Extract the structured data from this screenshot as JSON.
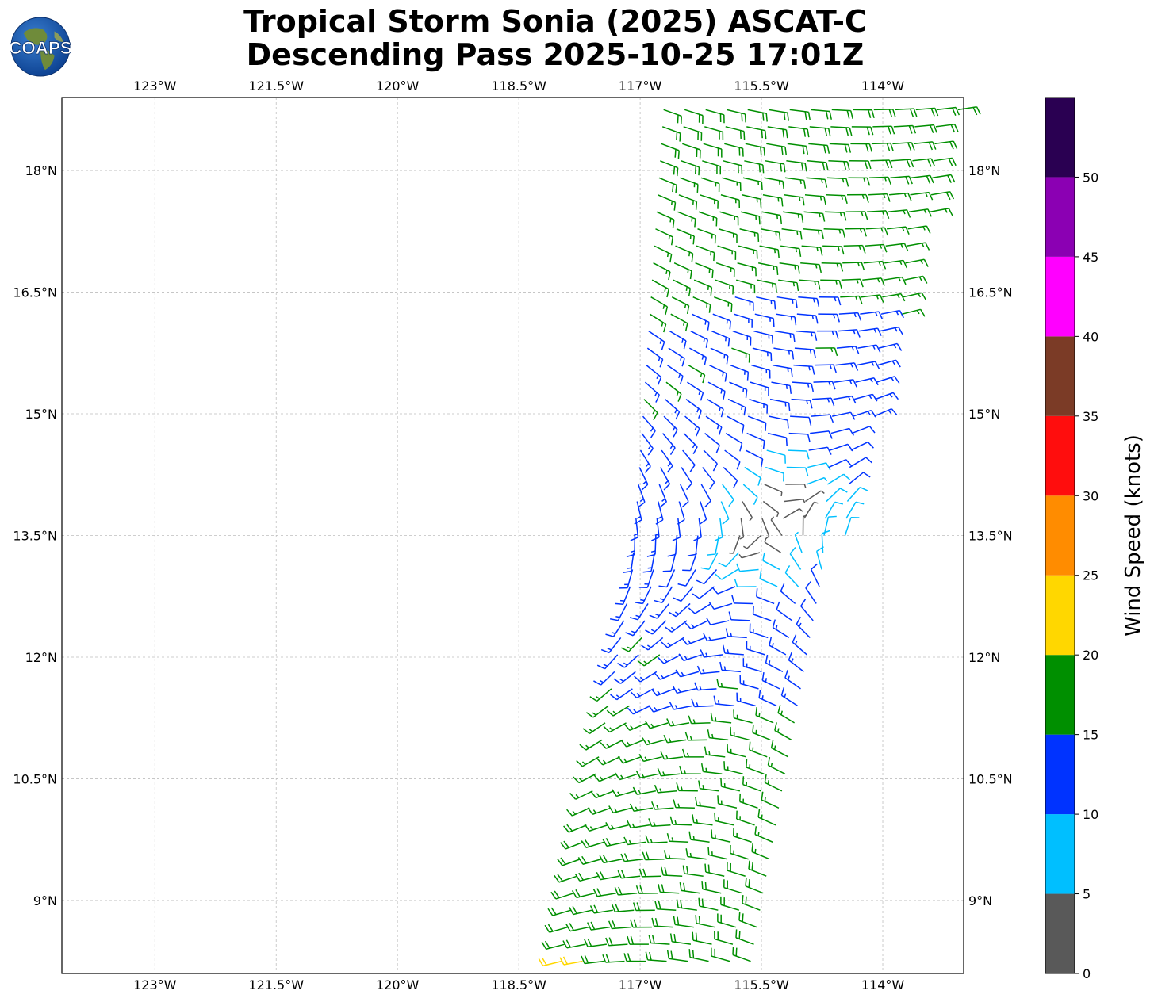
{
  "chart_data": {
    "type": "scatter",
    "plot_kind": "wind-barbs",
    "title": "Tropical Storm Sonia (2025) ASCAT-C",
    "subtitle": "Descending Pass 2025-10-25 17:01Z",
    "logo_text": "COAPS",
    "x_ticks": [
      "123°W",
      "121.5°W",
      "120°W",
      "118.5°W",
      "117°W",
      "115.5°W",
      "114°W"
    ],
    "x_tick_values": [
      -123,
      -121.5,
      -120,
      -118.5,
      -117,
      -115.5,
      -114
    ],
    "y_ticks": [
      "18°N",
      "16.5°N",
      "15°N",
      "13.5°N",
      "12°N",
      "10.5°N",
      "9°N"
    ],
    "y_tick_values": [
      18,
      16.5,
      15,
      13.5,
      12,
      10.5,
      9
    ],
    "xlim": [
      -124.15,
      -113.0
    ],
    "ylim": [
      8.1,
      18.9
    ],
    "grid": true,
    "colorbar": {
      "label": "Wind Speed (knots)",
      "ticks": [
        "0",
        "5",
        "10",
        "15",
        "20",
        "25",
        "30",
        "35",
        "40",
        "45",
        "50"
      ],
      "bounds": [
        0,
        5,
        10,
        15,
        20,
        25,
        30,
        35,
        40,
        45,
        50,
        55
      ],
      "colors": [
        "#595959",
        "#00bfff",
        "#0033ff",
        "#008f00",
        "#ffd700",
        "#ff8c00",
        "#ff0d0d",
        "#7b3b26",
        "#ff00ff",
        "#8b00b3",
        "#2a0052"
      ]
    },
    "storm_center": {
      "lon": -115.3,
      "lat": 13.7
    },
    "swath": {
      "west_edge": [
        [
          -118.0,
          8.1
        ],
        [
          -117.1,
          13.0
        ],
        [
          -116.7,
          18.9
        ]
      ],
      "east_edge": [
        [
          -115.5,
          8.1
        ],
        [
          -114.6,
          13.0
        ],
        [
          -113.0,
          18.9
        ]
      ]
    }
  }
}
